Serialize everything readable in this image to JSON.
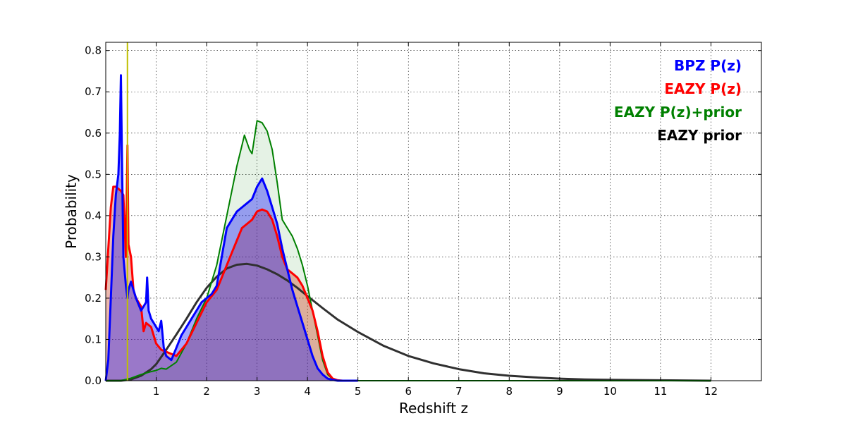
{
  "chart_data": {
    "type": "area",
    "xlabel": "Redshift z",
    "ylabel": "Probability",
    "xlim": [
      0,
      13
    ],
    "ylim": [
      0,
      0.82
    ],
    "xticks": [
      "1",
      "2",
      "3",
      "4",
      "5",
      "6",
      "7",
      "8",
      "9",
      "10",
      "11",
      "12"
    ],
    "yticks": [
      "0.0",
      "0.1",
      "0.2",
      "0.3",
      "0.4",
      "0.5",
      "0.6",
      "0.7",
      "0.8"
    ],
    "grid": true,
    "legend_position": "top-right",
    "vertical_line": {
      "x": 0.43,
      "color": "#bfbf00"
    },
    "series": [
      {
        "name": "EAZY prior",
        "color": "#303030",
        "filled": false,
        "x": [
          0.0,
          0.3,
          0.5,
          0.7,
          0.9,
          1.0,
          1.2,
          1.4,
          1.6,
          1.8,
          2.0,
          2.2,
          2.4,
          2.6,
          2.8,
          3.0,
          3.2,
          3.4,
          3.6,
          3.8,
          4.0,
          4.3,
          4.6,
          5.0,
          5.5,
          6.0,
          6.5,
          7.0,
          7.5,
          8.0,
          8.5,
          9.0,
          9.5,
          10.0,
          11.0,
          12.0
        ],
        "y": [
          0.0,
          0.0,
          0.003,
          0.012,
          0.028,
          0.04,
          0.075,
          0.112,
          0.15,
          0.19,
          0.225,
          0.252,
          0.272,
          0.281,
          0.283,
          0.279,
          0.27,
          0.258,
          0.243,
          0.225,
          0.205,
          0.176,
          0.148,
          0.118,
          0.085,
          0.06,
          0.042,
          0.028,
          0.018,
          0.012,
          0.008,
          0.005,
          0.003,
          0.002,
          0.001,
          0.0
        ]
      },
      {
        "name": "EAZY P(z)+prior",
        "color": "#008000",
        "fill": "#008000",
        "fill_opacity": 0.1,
        "x": [
          0.0,
          0.3,
          0.5,
          0.7,
          0.9,
          1.0,
          1.1,
          1.2,
          1.4,
          1.6,
          1.8,
          2.0,
          2.2,
          2.4,
          2.6,
          2.7,
          2.75,
          2.85,
          2.9,
          3.0,
          3.1,
          3.2,
          3.3,
          3.4,
          3.5,
          3.6,
          3.7,
          3.8,
          3.9,
          4.0,
          4.1,
          4.2,
          4.3,
          4.4,
          4.5,
          4.6,
          4.8,
          5.0,
          12.0
        ],
        "y": [
          0.0,
          0.0,
          0.006,
          0.015,
          0.022,
          0.025,
          0.03,
          0.028,
          0.045,
          0.09,
          0.15,
          0.2,
          0.28,
          0.4,
          0.52,
          0.57,
          0.595,
          0.56,
          0.55,
          0.63,
          0.625,
          0.605,
          0.56,
          0.48,
          0.39,
          0.37,
          0.35,
          0.32,
          0.28,
          0.23,
          0.17,
          0.11,
          0.05,
          0.015,
          0.004,
          0.001,
          0.0,
          0.0,
          0.0
        ]
      },
      {
        "name": "EAZY P(z)",
        "color": "#ff0000",
        "fill": "#cc3311",
        "fill_opacity": 0.35,
        "x": [
          0.0,
          0.05,
          0.1,
          0.15,
          0.2,
          0.25,
          0.3,
          0.35,
          0.4,
          0.43,
          0.45,
          0.5,
          0.55,
          0.6,
          0.7,
          0.75,
          0.8,
          0.9,
          1.0,
          1.1,
          1.2,
          1.3,
          1.4,
          1.6,
          1.8,
          2.0,
          2.2,
          2.4,
          2.5,
          2.6,
          2.7,
          2.8,
          2.9,
          3.0,
          3.1,
          3.2,
          3.3,
          3.4,
          3.5,
          3.6,
          3.7,
          3.8,
          3.9,
          4.0,
          4.1,
          4.2,
          4.3,
          4.4,
          4.5,
          4.6,
          4.7,
          5.0
        ],
        "y": [
          0.22,
          0.32,
          0.42,
          0.47,
          0.47,
          0.465,
          0.46,
          0.45,
          0.3,
          0.57,
          0.33,
          0.3,
          0.22,
          0.2,
          0.18,
          0.12,
          0.14,
          0.13,
          0.09,
          0.075,
          0.07,
          0.065,
          0.06,
          0.09,
          0.14,
          0.19,
          0.22,
          0.28,
          0.31,
          0.34,
          0.37,
          0.38,
          0.39,
          0.41,
          0.415,
          0.41,
          0.39,
          0.35,
          0.3,
          0.27,
          0.26,
          0.25,
          0.23,
          0.2,
          0.17,
          0.12,
          0.06,
          0.02,
          0.005,
          0.001,
          0.0,
          0.0
        ]
      },
      {
        "name": "BPZ P(z)",
        "color": "#0000ff",
        "fill": "#0000ff",
        "fill_opacity": 0.35,
        "x": [
          0.0,
          0.05,
          0.1,
          0.15,
          0.2,
          0.25,
          0.28,
          0.3,
          0.32,
          0.35,
          0.4,
          0.43,
          0.45,
          0.5,
          0.55,
          0.6,
          0.7,
          0.8,
          0.82,
          0.85,
          0.9,
          0.95,
          1.0,
          1.05,
          1.1,
          1.15,
          1.2,
          1.3,
          1.4,
          1.5,
          1.6,
          1.7,
          1.8,
          1.9,
          2.0,
          2.1,
          2.2,
          2.3,
          2.4,
          2.5,
          2.6,
          2.7,
          2.8,
          2.9,
          3.0,
          3.05,
          3.1,
          3.2,
          3.3,
          3.4,
          3.5,
          3.6,
          3.7,
          3.8,
          3.9,
          4.0,
          4.1,
          4.2,
          4.3,
          4.4,
          4.5,
          4.6,
          5.0
        ],
        "y": [
          0.0,
          0.05,
          0.2,
          0.35,
          0.45,
          0.5,
          0.6,
          0.74,
          0.55,
          0.3,
          0.23,
          0.2,
          0.22,
          0.24,
          0.22,
          0.2,
          0.17,
          0.19,
          0.25,
          0.17,
          0.15,
          0.14,
          0.13,
          0.12,
          0.145,
          0.08,
          0.06,
          0.05,
          0.08,
          0.11,
          0.13,
          0.15,
          0.17,
          0.19,
          0.2,
          0.21,
          0.23,
          0.3,
          0.37,
          0.39,
          0.41,
          0.42,
          0.43,
          0.44,
          0.47,
          0.48,
          0.49,
          0.46,
          0.42,
          0.38,
          0.32,
          0.27,
          0.22,
          0.18,
          0.14,
          0.1,
          0.06,
          0.03,
          0.015,
          0.005,
          0.002,
          0.0,
          0.0
        ]
      }
    ],
    "legend": [
      "BPZ P(z)",
      "EAZY P(z)",
      "EAZY P(z)+prior",
      "EAZY prior"
    ],
    "legend_colors": [
      "#0000ff",
      "#ff0000",
      "#008000",
      "#000000"
    ]
  }
}
